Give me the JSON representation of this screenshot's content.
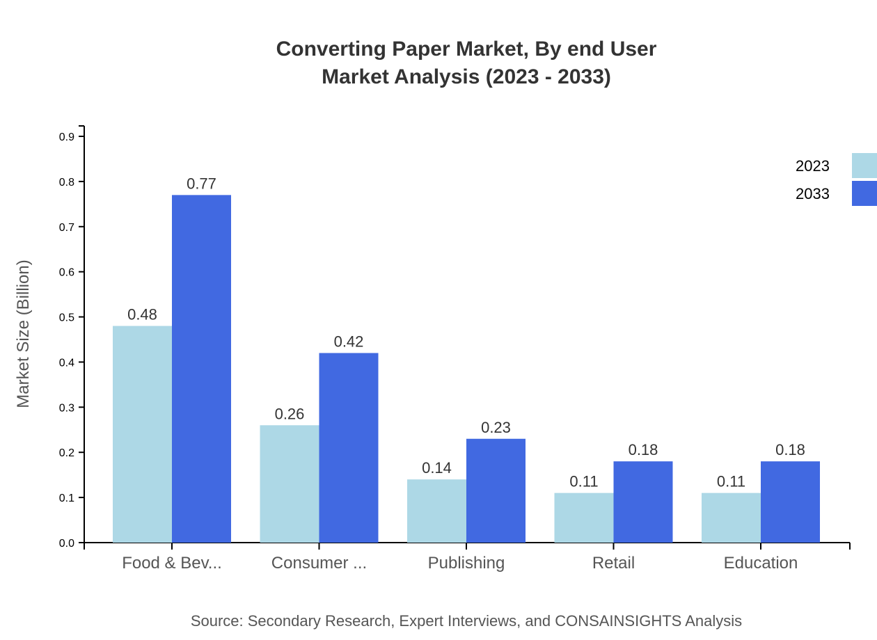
{
  "chart_data": {
    "type": "bar",
    "title": [
      "Converting Paper Market, By end User",
      "Market Analysis (2023 - 2033)"
    ],
    "xlabel": "",
    "ylabel": "Market Size (Billion)",
    "ylim": [
      0,
      0.9
    ],
    "yticks": [
      "0.0",
      "0.1",
      "0.2",
      "0.3",
      "0.4",
      "0.5",
      "0.6",
      "0.7",
      "0.8",
      "0.9"
    ],
    "categories": [
      "Food & Bev...",
      "Consumer ...",
      "Publishing",
      "Retail",
      "Education"
    ],
    "series": [
      {
        "name": "2023",
        "color": "#ADD8E6",
        "values": [
          0.48,
          0.26,
          0.14,
          0.11,
          0.11
        ]
      },
      {
        "name": "2033",
        "color": "#4169E1",
        "values": [
          0.77,
          0.42,
          0.23,
          0.18,
          0.18
        ]
      }
    ],
    "grid": false,
    "legend": "top-right",
    "source": "Source: Secondary Research, Expert Interviews, and CONSAINSIGHTS Analysis"
  }
}
